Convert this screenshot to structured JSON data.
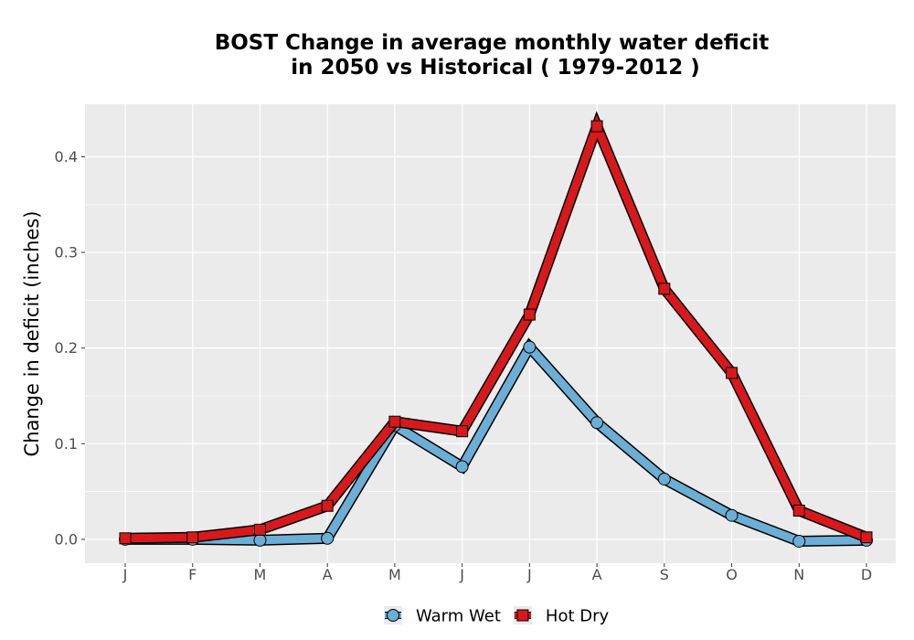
{
  "chart_data": {
    "type": "line",
    "title_line1": "BOST  Change in average monthly water deficit",
    "title_line2": "in 2050 vs Historical ( 1979-2012 )",
    "xlabel": "",
    "ylabel": "Change in deficit (inches)",
    "categories": [
      "J",
      "F",
      "M",
      "A",
      "M",
      "J",
      "J",
      "A",
      "S",
      "O",
      "N",
      "D"
    ],
    "yticks": [
      "0.0",
      "0.1",
      "0.2",
      "0.3",
      "0.4"
    ],
    "ylim": [
      -0.025,
      0.455
    ],
    "grid": true,
    "legend_position": "bottom",
    "series": [
      {
        "name": "Warm Wet",
        "color": "#6baed6",
        "marker": "circle",
        "values": [
          0.0,
          0.0,
          -0.001,
          0.001,
          0.119,
          0.076,
          0.201,
          0.122,
          0.063,
          0.025,
          -0.002,
          -0.001
        ]
      },
      {
        "name": "Hot Dry",
        "color": "#d7191c",
        "marker": "square",
        "values": [
          0.001,
          0.002,
          0.01,
          0.035,
          0.123,
          0.113,
          0.235,
          0.432,
          0.262,
          0.174,
          0.03,
          0.002
        ]
      }
    ]
  }
}
